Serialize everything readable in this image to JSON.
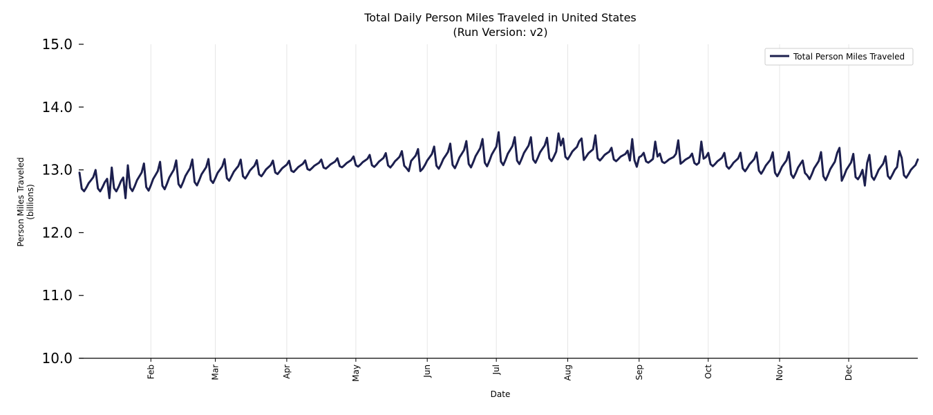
{
  "chart_data": {
    "type": "line",
    "title": "Total Daily Person Miles Traveled in United States",
    "subtitle": "(Run Version: v2)",
    "xlabel": "Date",
    "ylabel": "Person Miles Traveled",
    "ylabel_sub": "(billions)",
    "ylim": [
      10.0,
      15.0
    ],
    "yticks": [
      {
        "value": 10.0,
        "label": "10.0"
      },
      {
        "value": 11.0,
        "label": "11.0"
      },
      {
        "value": 12.0,
        "label": "12.0"
      },
      {
        "value": 13.0,
        "label": "13.0"
      },
      {
        "value": 14.0,
        "label": "14.0"
      },
      {
        "value": 15.0,
        "label": "15.0"
      }
    ],
    "xlim_day": [
      0,
      364
    ],
    "xticks": [
      {
        "day": 31,
        "label": "Feb"
      },
      {
        "day": 59,
        "label": "Mar"
      },
      {
        "day": 90,
        "label": "Apr"
      },
      {
        "day": 120,
        "label": "May"
      },
      {
        "day": 151,
        "label": "Jun"
      },
      {
        "day": 181,
        "label": "Jul"
      },
      {
        "day": 212,
        "label": "Aug"
      },
      {
        "day": 243,
        "label": "Sep"
      },
      {
        "day": 273,
        "label": "Oct"
      },
      {
        "day": 304,
        "label": "Nov"
      },
      {
        "day": 334,
        "label": "Dec"
      }
    ],
    "grid": "vertical",
    "legend_position": "top-right",
    "series": [
      {
        "name": "Total Person Miles Traveled",
        "color": "#1c1f4e",
        "trend": [
          {
            "day": 0,
            "value": 12.78
          },
          {
            "day": 31,
            "value": 12.85
          },
          {
            "day": 59,
            "value": 12.95
          },
          {
            "day": 90,
            "value": 13.03
          },
          {
            "day": 120,
            "value": 13.12
          },
          {
            "day": 151,
            "value": 13.15
          },
          {
            "day": 181,
            "value": 13.25
          },
          {
            "day": 212,
            "value": 13.3
          },
          {
            "day": 243,
            "value": 13.18
          },
          {
            "day": 273,
            "value": 13.15
          },
          {
            "day": 304,
            "value": 13.05
          },
          {
            "day": 334,
            "value": 13.0
          },
          {
            "day": 364,
            "value": 13.0
          }
        ],
        "weekly_pattern": [
          0.22,
          -0.1,
          -0.15,
          -0.08,
          0.0,
          0.05,
          0.1
        ],
        "dips": [
          {
            "day": 13,
            "value": 12.55
          },
          {
            "day": 20,
            "value": 12.55
          },
          {
            "day": 143,
            "value": 12.98
          },
          {
            "day": 148,
            "value": 12.98
          },
          {
            "day": 242,
            "value": 13.05
          },
          {
            "day": 315,
            "value": 12.95
          },
          {
            "day": 338,
            "value": 12.85
          },
          {
            "day": 341,
            "value": 12.75
          }
        ],
        "peaks": [
          {
            "day": 182,
            "value": 13.6
          },
          {
            "day": 208,
            "value": 13.58
          },
          {
            "day": 218,
            "value": 13.5
          },
          {
            "day": 224,
            "value": 13.55
          },
          {
            "day": 240,
            "value": 13.49
          },
          {
            "day": 250,
            "value": 13.45
          },
          {
            "day": 260,
            "value": 13.47
          },
          {
            "day": 270,
            "value": 13.45
          },
          {
            "day": 330,
            "value": 13.35
          },
          {
            "day": 356,
            "value": 13.3
          }
        ]
      }
    ]
  }
}
